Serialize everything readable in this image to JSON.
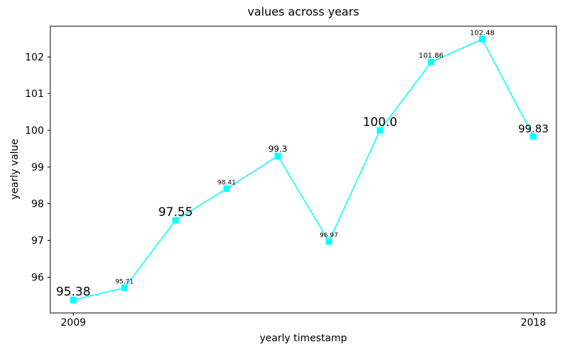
{
  "chart_data": {
    "type": "line",
    "title": "values across years",
    "xlabel": "yearly timestamp",
    "ylabel": "yearly value",
    "x": [
      2009,
      2010,
      2011,
      2012,
      2013,
      2014,
      2015,
      2016,
      2017,
      2018
    ],
    "series": [
      {
        "name": "yearly value",
        "values": [
          95.38,
          95.71,
          97.55,
          98.41,
          99.3,
          96.97,
          100.0,
          101.86,
          102.48,
          99.83
        ]
      }
    ],
    "point_labels": [
      "95.38",
      "95.71",
      "97.55",
      "98.41",
      "99.3",
      "96.97",
      "100.0",
      "101.86",
      "102.48",
      "99.83"
    ],
    "point_label_font_px": [
      17,
      9,
      17,
      9,
      12,
      9,
      17,
      10,
      10,
      15
    ],
    "xticks": [
      2009,
      2018
    ],
    "xtick_labels": [
      "2009",
      "2018"
    ],
    "yticks": [
      96,
      97,
      98,
      99,
      100,
      101,
      102
    ],
    "ytick_labels": [
      "96",
      "97",
      "98",
      "99",
      "100",
      "101",
      "102"
    ],
    "xlim": [
      2008.55,
      2018.45
    ],
    "ylim": [
      95.025,
      102.835
    ],
    "grid": false,
    "legend": null,
    "line_color": "#00ffff",
    "marker": "square",
    "marker_color": "#00ffff",
    "axis_color": "#000000",
    "text_color": "#000000",
    "background_color": "#ffffff"
  }
}
